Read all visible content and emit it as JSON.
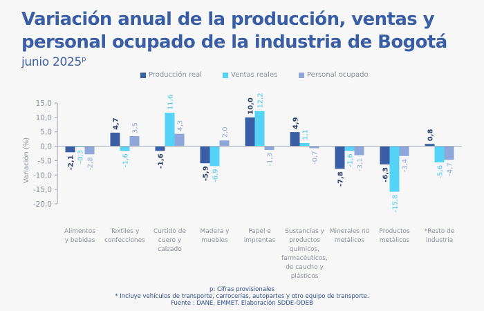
{
  "chart_data": {
    "type": "bar",
    "title": "Variación anual de la producción, ventas y personal ocupado de la industria de Bogotá",
    "subtitle": "junio 2025",
    "subtitle_sup": "p",
    "xlabel": "",
    "ylabel": "Variación (%)",
    "ylim": [
      -20,
      15
    ],
    "yticks": [
      15,
      10,
      5,
      0,
      -5,
      -10,
      -15,
      -20
    ],
    "ytick_labels": [
      "15,0",
      "10,0",
      "5,0",
      "0,0",
      "-5,0",
      "-10,0",
      "-15,0",
      "-20,0"
    ],
    "grid": false,
    "legend_position": "top-center",
    "categories": [
      [
        "Alimentos",
        "y bebidas"
      ],
      [
        "Textiles y",
        "confecciones"
      ],
      [
        "Curtido de",
        "cuero y",
        "calzado"
      ],
      [
        "Madera y",
        "muebles"
      ],
      [
        "Papel e",
        "imprentas"
      ],
      [
        "Sustancias y",
        "productos",
        "químicos,",
        "farmacéuticos,",
        "de caucho y",
        "plásticos"
      ],
      [
        "Minerales no",
        "metálicos"
      ],
      [
        "Productos",
        "metálicos"
      ],
      [
        "*Resto de",
        "industria"
      ]
    ],
    "series": [
      {
        "name": "Producción real",
        "color": "#3a5ea5",
        "label_color": "#2b3f6b",
        "bold": true,
        "values": [
          -2.1,
          4.7,
          -1.6,
          -5.9,
          10.0,
          4.9,
          -7.8,
          -6.3,
          0.8
        ],
        "labels": [
          "-2,1",
          "4,7",
          "-1,6",
          "-5,9",
          "10,0",
          "4,9",
          "-7,8",
          "-6,3",
          "0,8"
        ]
      },
      {
        "name": "Ventas reales",
        "color": "#55d3f7",
        "label_color": "#48c8ee",
        "bold": false,
        "values": [
          -0.3,
          -1.6,
          11.6,
          -6.9,
          12.2,
          1.1,
          -1.6,
          -15.8,
          -5.6
        ],
        "labels": [
          "-0,3",
          "-1,6",
          "11,6",
          "-6,9",
          "12,2",
          "1,1",
          "-1,6",
          "-15,8",
          "-5,6"
        ]
      },
      {
        "name": "Personal ocupado",
        "color": "#8ea6d9",
        "label_color": "#8ea6d9",
        "bold": false,
        "values": [
          -2.8,
          3.5,
          4.3,
          2.0,
          -1.3,
          -0.7,
          -3.1,
          -3.4,
          -4.7
        ],
        "labels": [
          "-2,8",
          "3,5",
          "4,3",
          "2,0",
          "-1,3",
          "-0,7",
          "-3,1",
          "-3,4",
          "-4,7"
        ]
      }
    ]
  },
  "footer": {
    "note1": "p: Cifras provisionales",
    "note2": "*  Incluye vehículos de transporte, carrocerías, autopartes y otro equipo de transporte.",
    "source": "Fuente : DANE, EMMET. Elaboración SDDE-ODEB"
  }
}
